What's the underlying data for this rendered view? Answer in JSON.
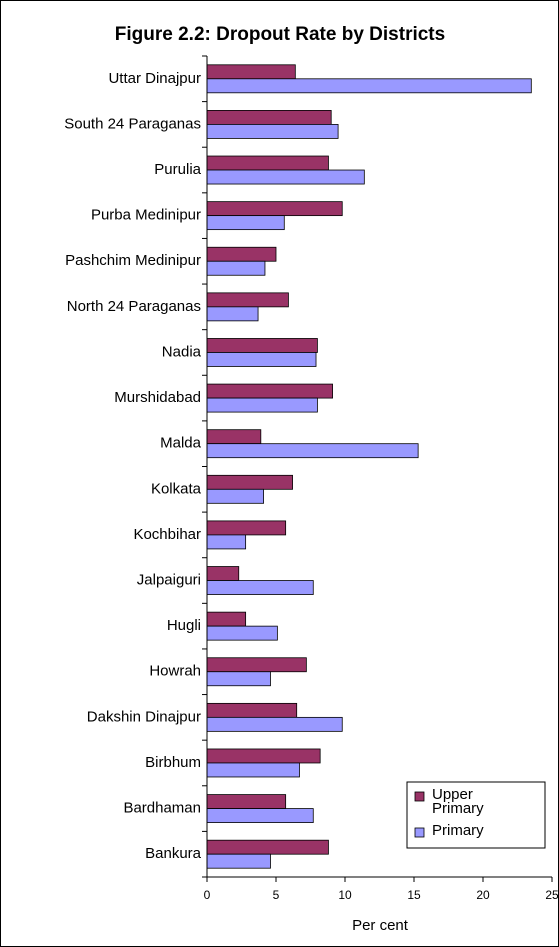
{
  "chart_data": {
    "type": "bar",
    "orientation": "horizontal",
    "title": "Figure 2.2: Dropout Rate by Districts",
    "x_label": "Per cent",
    "categories": [
      "Uttar Dinajpur",
      "South 24 Paraganas",
      "Purulia",
      "Purba Medinipur",
      "Pashchim Medinipur",
      "North 24 Paraganas",
      "Nadia",
      "Murshidabad",
      "Malda",
      "Kolkata",
      "Kochbihar",
      "Jalpaiguri",
      "Hugli",
      "Howrah",
      "Dakshin Dinajpur",
      "Birbhum",
      "Bardhaman",
      "Bankura"
    ],
    "series": [
      {
        "name": "Upper Primary",
        "color": "#993366",
        "values": [
          6.4,
          9.0,
          8.8,
          9.8,
          5.0,
          5.9,
          8.0,
          9.1,
          3.9,
          6.2,
          5.7,
          2.3,
          2.8,
          7.2,
          6.5,
          8.2,
          5.7,
          8.8
        ]
      },
      {
        "name": "Primary",
        "color": "#9999ff",
        "values": [
          23.5,
          9.5,
          11.4,
          5.6,
          4.2,
          3.7,
          7.9,
          8.0,
          15.3,
          4.1,
          2.8,
          7.7,
          5.1,
          4.6,
          9.8,
          6.7,
          7.7,
          4.6
        ]
      }
    ],
    "xlim": [
      0,
      25
    ],
    "xticks": [
      0,
      5,
      10,
      15,
      20,
      25
    ],
    "legend": "lower right"
  }
}
